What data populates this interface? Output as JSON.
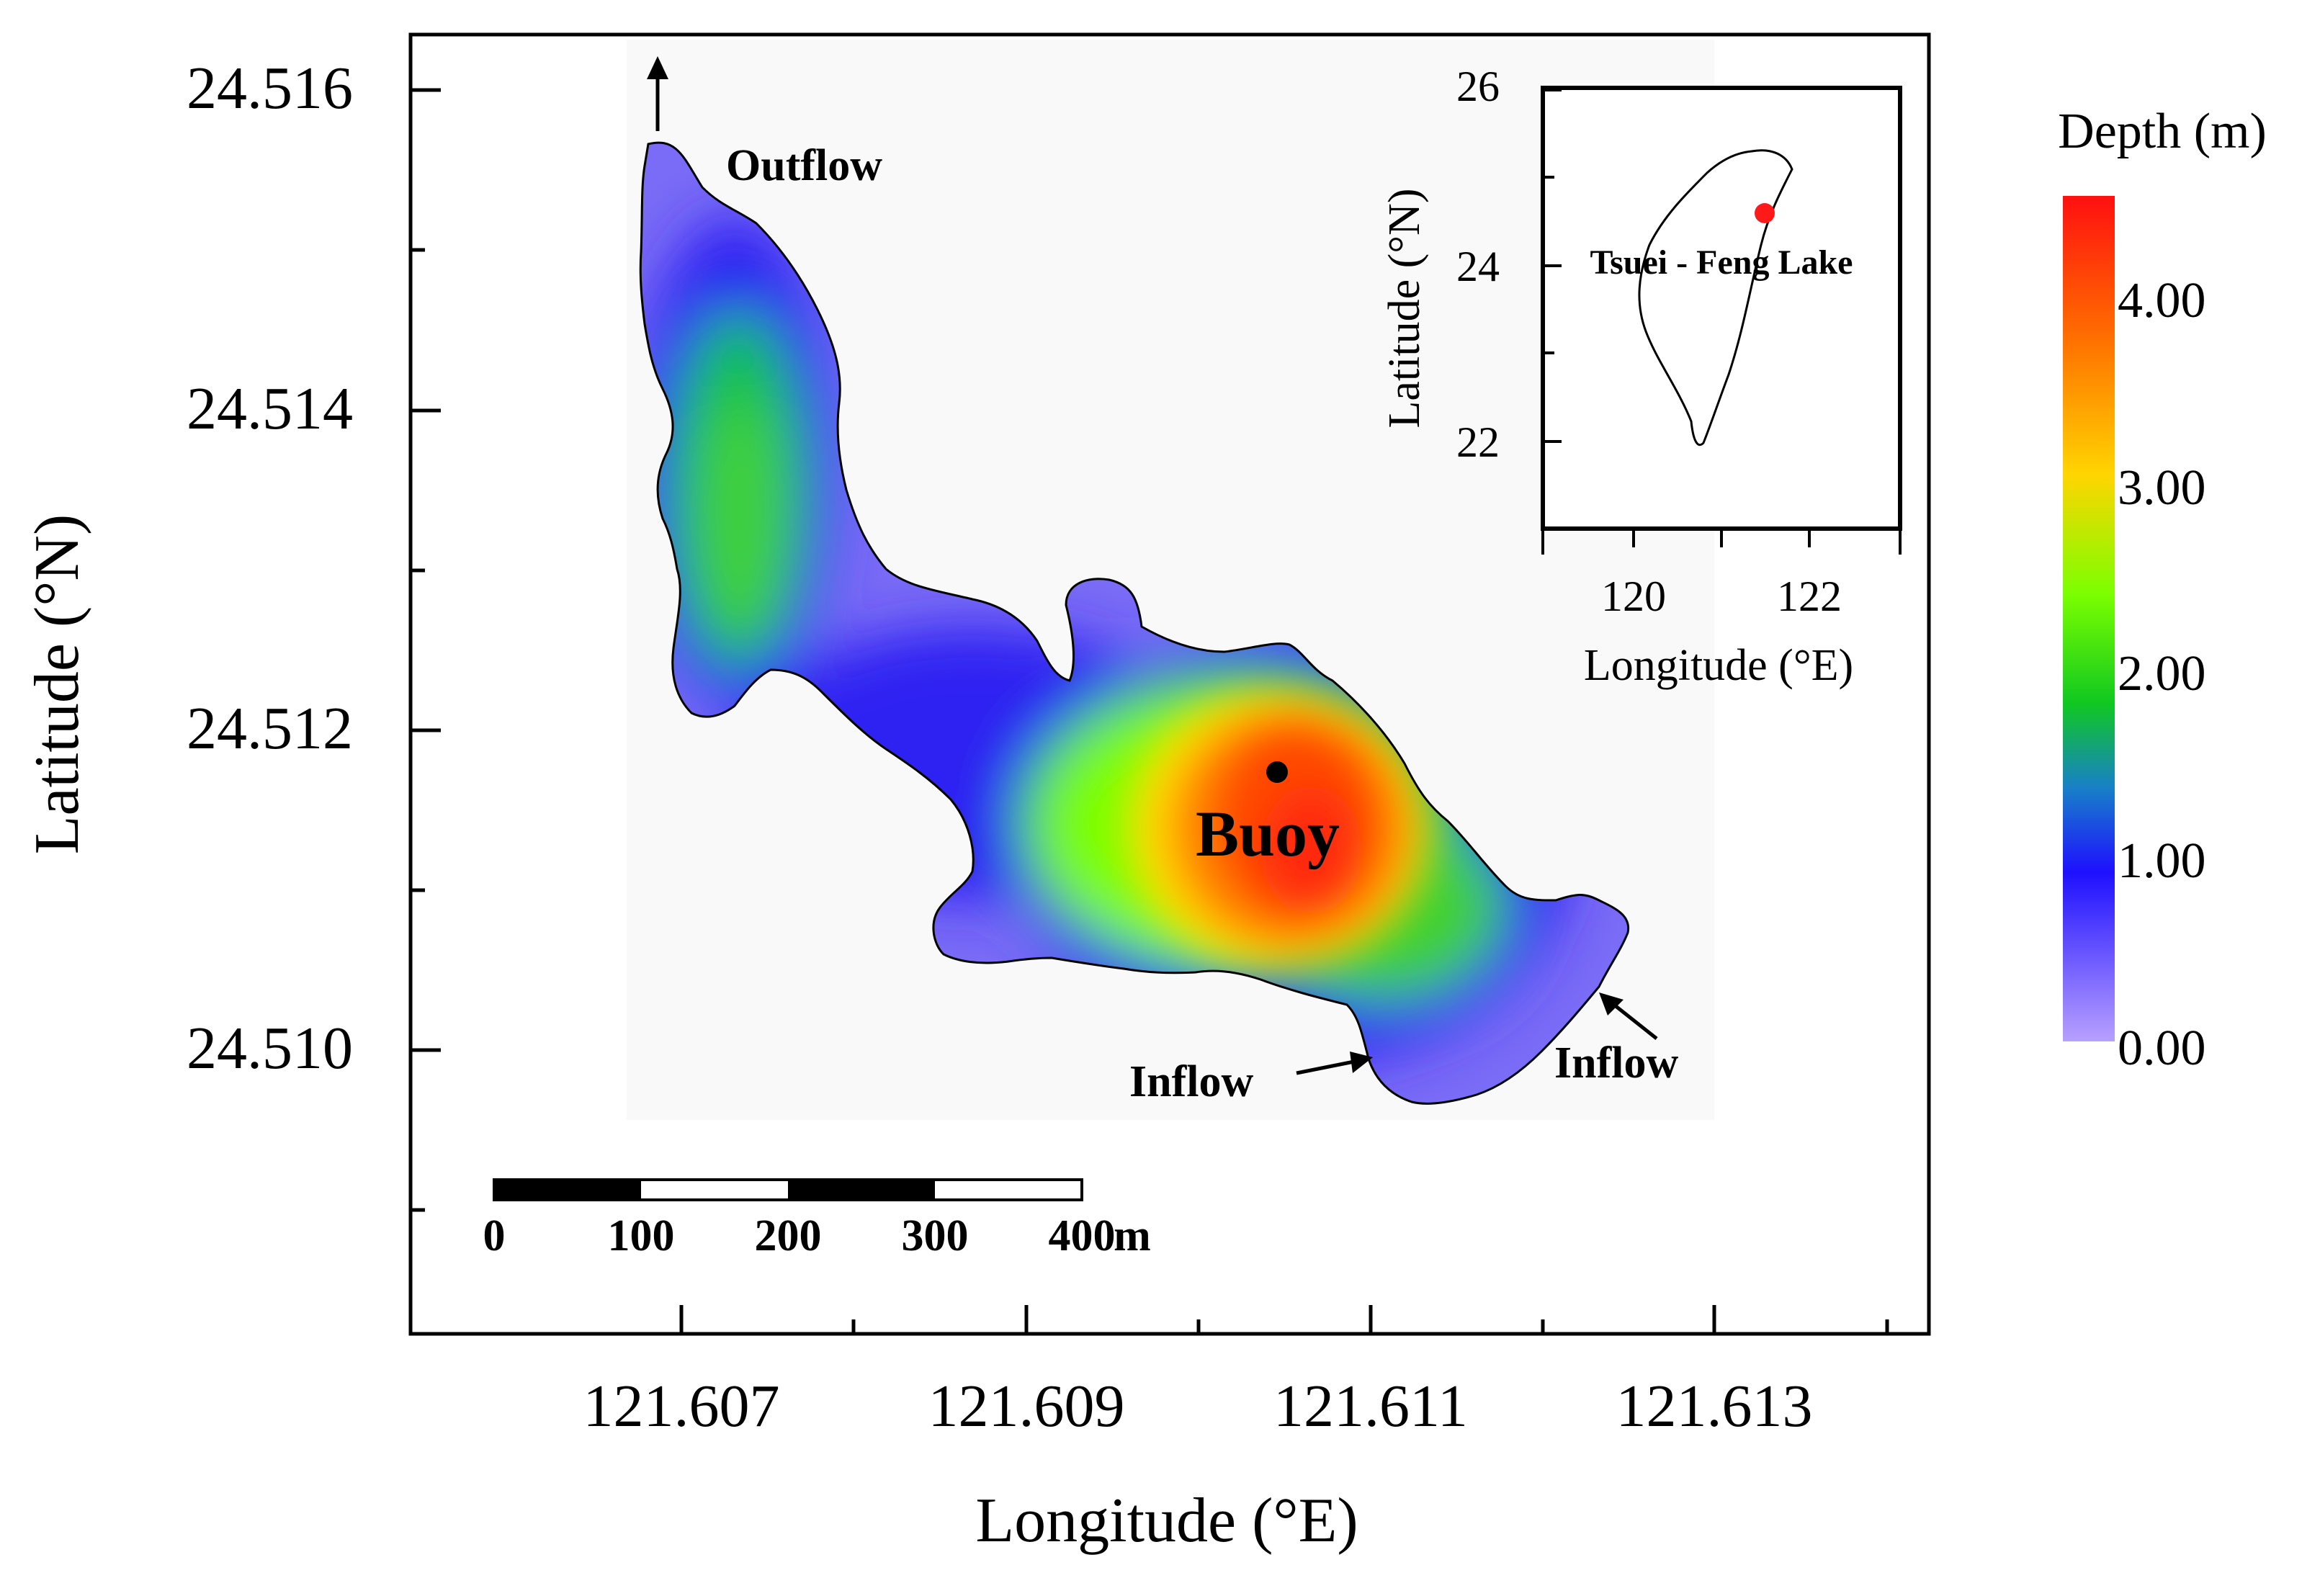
{
  "main_map": {
    "x_axis": {
      "label": "Longitude (°E)",
      "ticks": [
        "121.607",
        "121.609",
        "121.611",
        "121.613"
      ]
    },
    "y_axis": {
      "label": "Latitude (°N)",
      "ticks": [
        "24.516",
        "24.514",
        "24.512",
        "24.510"
      ]
    },
    "annotations": {
      "outflow": "Outflow",
      "buoy": "Buoy",
      "inflow_left": "Inflow",
      "inflow_right": "Inflow"
    },
    "scale_bar": {
      "labels": [
        "0",
        "100",
        "200",
        "300",
        "400"
      ],
      "unit": "m"
    }
  },
  "inset_map": {
    "x_axis": {
      "label": "Longitude (°E)",
      "ticks": [
        "120",
        "122"
      ]
    },
    "y_axis": {
      "label": "Latitude (°N)",
      "ticks": [
        "26",
        "24",
        "22"
      ]
    },
    "location_label": "Tsuei - Feng Lake",
    "marker_color": "#ff1a1a"
  },
  "colorbar": {
    "title": "Depth (m)",
    "ticks": [
      "4.00",
      "3.00",
      "2.00",
      "1.00",
      "0.00"
    ],
    "colors": [
      "#ff1010",
      "#ff6a00",
      "#ffd500",
      "#7cff00",
      "#10c820",
      "#1880c8",
      "#1e10ff",
      "#a88cff"
    ]
  }
}
